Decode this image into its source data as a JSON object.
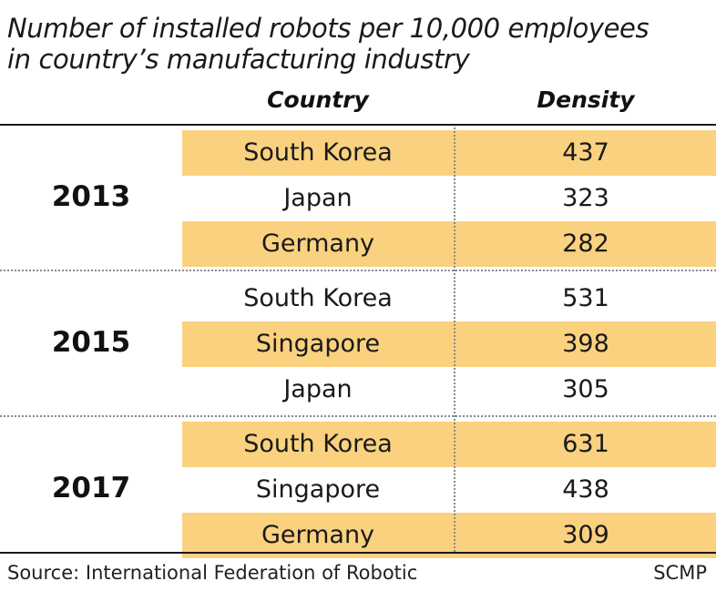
{
  "chart_data": {
    "type": "table",
    "title_lines": [
      "Number of installed robots per 10,000 employees",
      "in country’s manufacturing industry"
    ],
    "columns": [
      "Country",
      "Density"
    ],
    "groups": [
      {
        "year": "2013",
        "rows": [
          {
            "country": "South Korea",
            "density": 437
          },
          {
            "country": "Japan",
            "density": 323
          },
          {
            "country": "Germany",
            "density": 282
          }
        ]
      },
      {
        "year": "2015",
        "rows": [
          {
            "country": "South Korea",
            "density": 531
          },
          {
            "country": "Singapore",
            "density": 398
          },
          {
            "country": "Japan",
            "density": 305
          }
        ]
      },
      {
        "year": "2017",
        "rows": [
          {
            "country": "South Korea",
            "density": 631
          },
          {
            "country": "Singapore",
            "density": 438
          },
          {
            "country": "Germany",
            "density": 309
          }
        ]
      }
    ],
    "source": "Source: International Federation of Robotic",
    "credit": "SCMP"
  },
  "colors": {
    "shade": "#fad17f",
    "text": "#1a1a1a",
    "separator": "#8a8a8a"
  }
}
